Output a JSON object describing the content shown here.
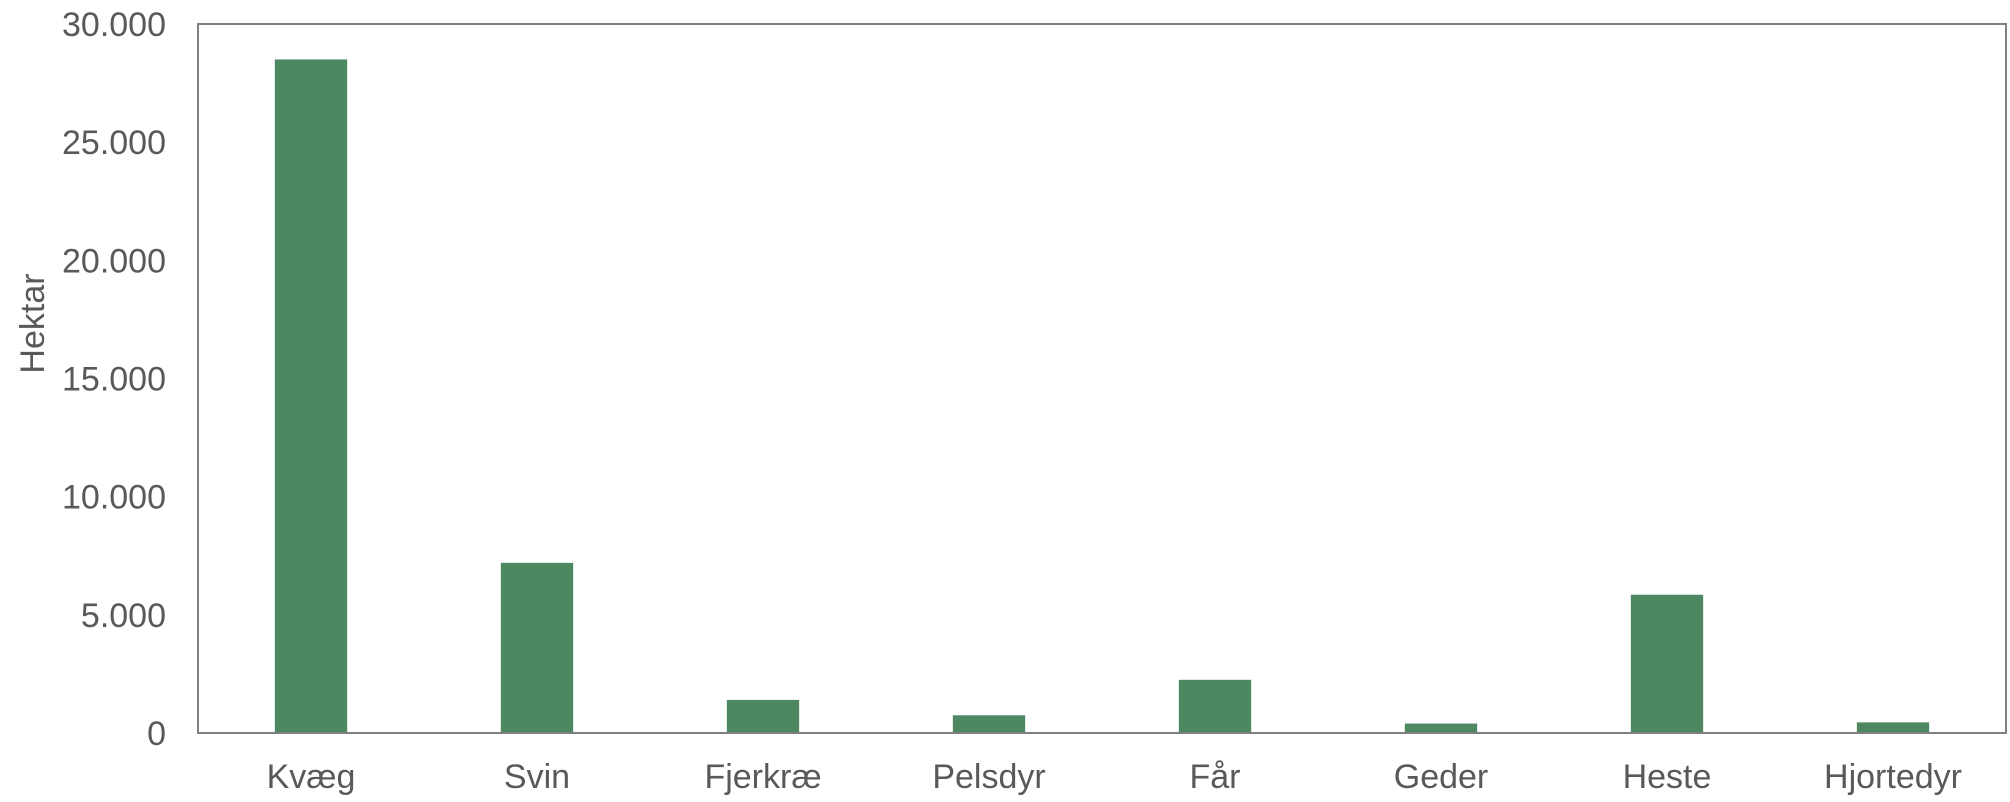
{
  "chart_data": {
    "type": "bar",
    "categories": [
      "Kvæg",
      "Svin",
      "Fjerkræ",
      "Pelsdyr",
      "Får",
      "Geder",
      "Heste",
      "Hjortedyr"
    ],
    "values": [
      28500,
      7200,
      1400,
      750,
      2250,
      400,
      5850,
      450
    ],
    "title": "",
    "xlabel": "",
    "ylabel": "Hektar",
    "ylim": [
      0,
      30000
    ],
    "yticks": [
      0,
      5000,
      10000,
      15000,
      20000,
      25000,
      30000
    ],
    "ytick_labels": [
      "0",
      "5.000",
      "10.000",
      "15.000",
      "20.000",
      "25.000",
      "30.000"
    ],
    "grid": false,
    "legend": "none",
    "bar_color": "#4d8863",
    "frame_color": "#808080"
  }
}
